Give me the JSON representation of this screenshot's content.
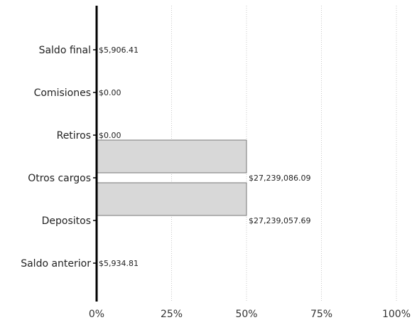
{
  "chart_data": {
    "type": "bar",
    "orientation": "horizontal",
    "categories": [
      "Saldo final",
      "Comisiones",
      "Retiros",
      "Otros cargos",
      "Depositos",
      "Saldo anterior"
    ],
    "values": [
      0.0108,
      0,
      0,
      50,
      50,
      0.0109
    ],
    "value_labels": [
      "$5,906.41",
      "$0.00",
      "$0.00",
      "$27,239,086.09",
      "$27,239,057.69",
      "$5,934.81"
    ],
    "x_ticks": [
      "0%",
      "25%",
      "50%",
      "75%",
      "100%"
    ],
    "x_tick_values": [
      0,
      25,
      50,
      75,
      100
    ],
    "xlim": [
      0,
      100
    ],
    "title": "",
    "xlabel": "",
    "ylabel": "",
    "grid": true,
    "bar_fill": "#d8d8d8",
    "bar_stroke": "#777777"
  }
}
